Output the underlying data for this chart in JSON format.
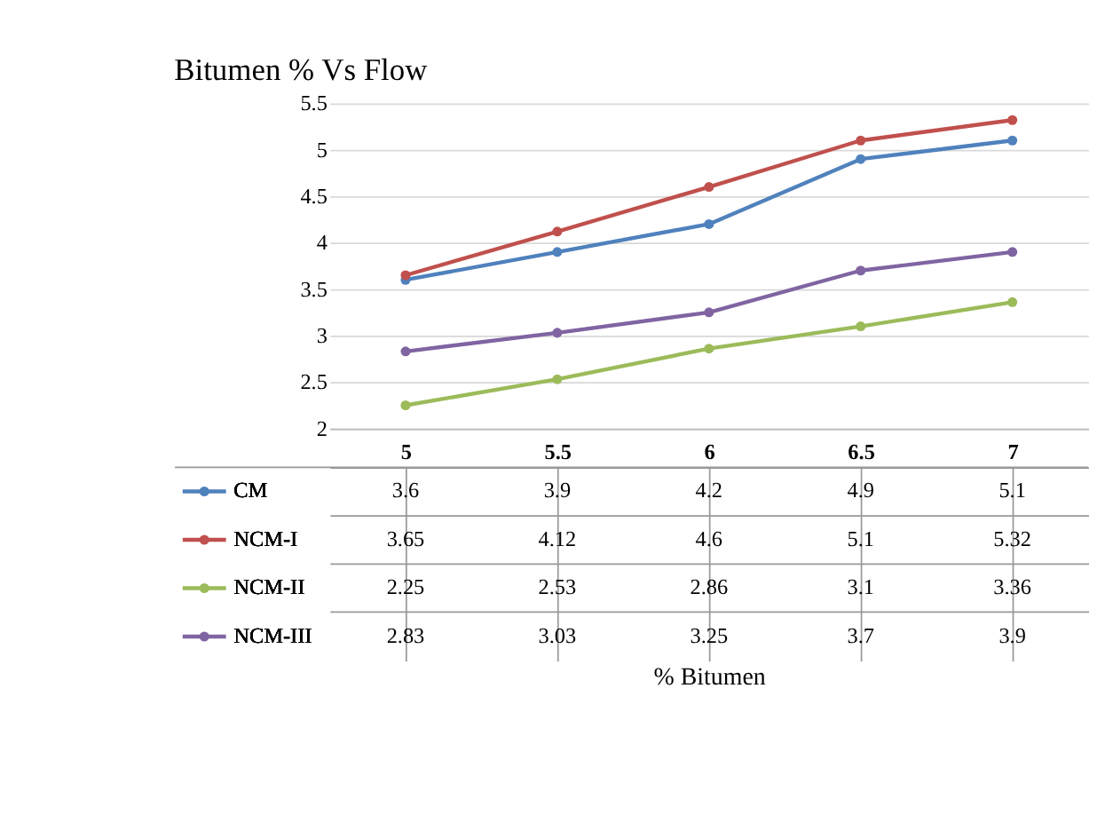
{
  "chart_data": {
    "type": "line",
    "title": "Bitumen % Vs Flow",
    "annotations": [
      "% Bitumen"
    ],
    "categories": [
      "5",
      "5.5",
      "6",
      "6.5",
      "7"
    ],
    "series": [
      {
        "name": "CM",
        "color": "#4f81bd",
        "values": [
          3.6,
          3.9,
          4.2,
          4.9,
          5.1
        ]
      },
      {
        "name": "NCM-I",
        "color": "#c0504d",
        "values": [
          3.65,
          4.12,
          4.6,
          5.1,
          5.32
        ]
      },
      {
        "name": "NCM-II",
        "color": "#9bbb59",
        "values": [
          2.25,
          2.53,
          2.86,
          3.1,
          3.36
        ]
      },
      {
        "name": "NCM-III",
        "color": "#8064a2",
        "values": [
          2.83,
          3.03,
          3.25,
          3.7,
          3.9
        ]
      }
    ],
    "ylim": [
      2,
      5.5
    ],
    "yticks": [
      2,
      2.5,
      3,
      3.5,
      4,
      4.5,
      5,
      5.5
    ],
    "grid": "y",
    "legend": "bottom",
    "marker": "circle",
    "line_style": "solid",
    "data_labels": true
  }
}
